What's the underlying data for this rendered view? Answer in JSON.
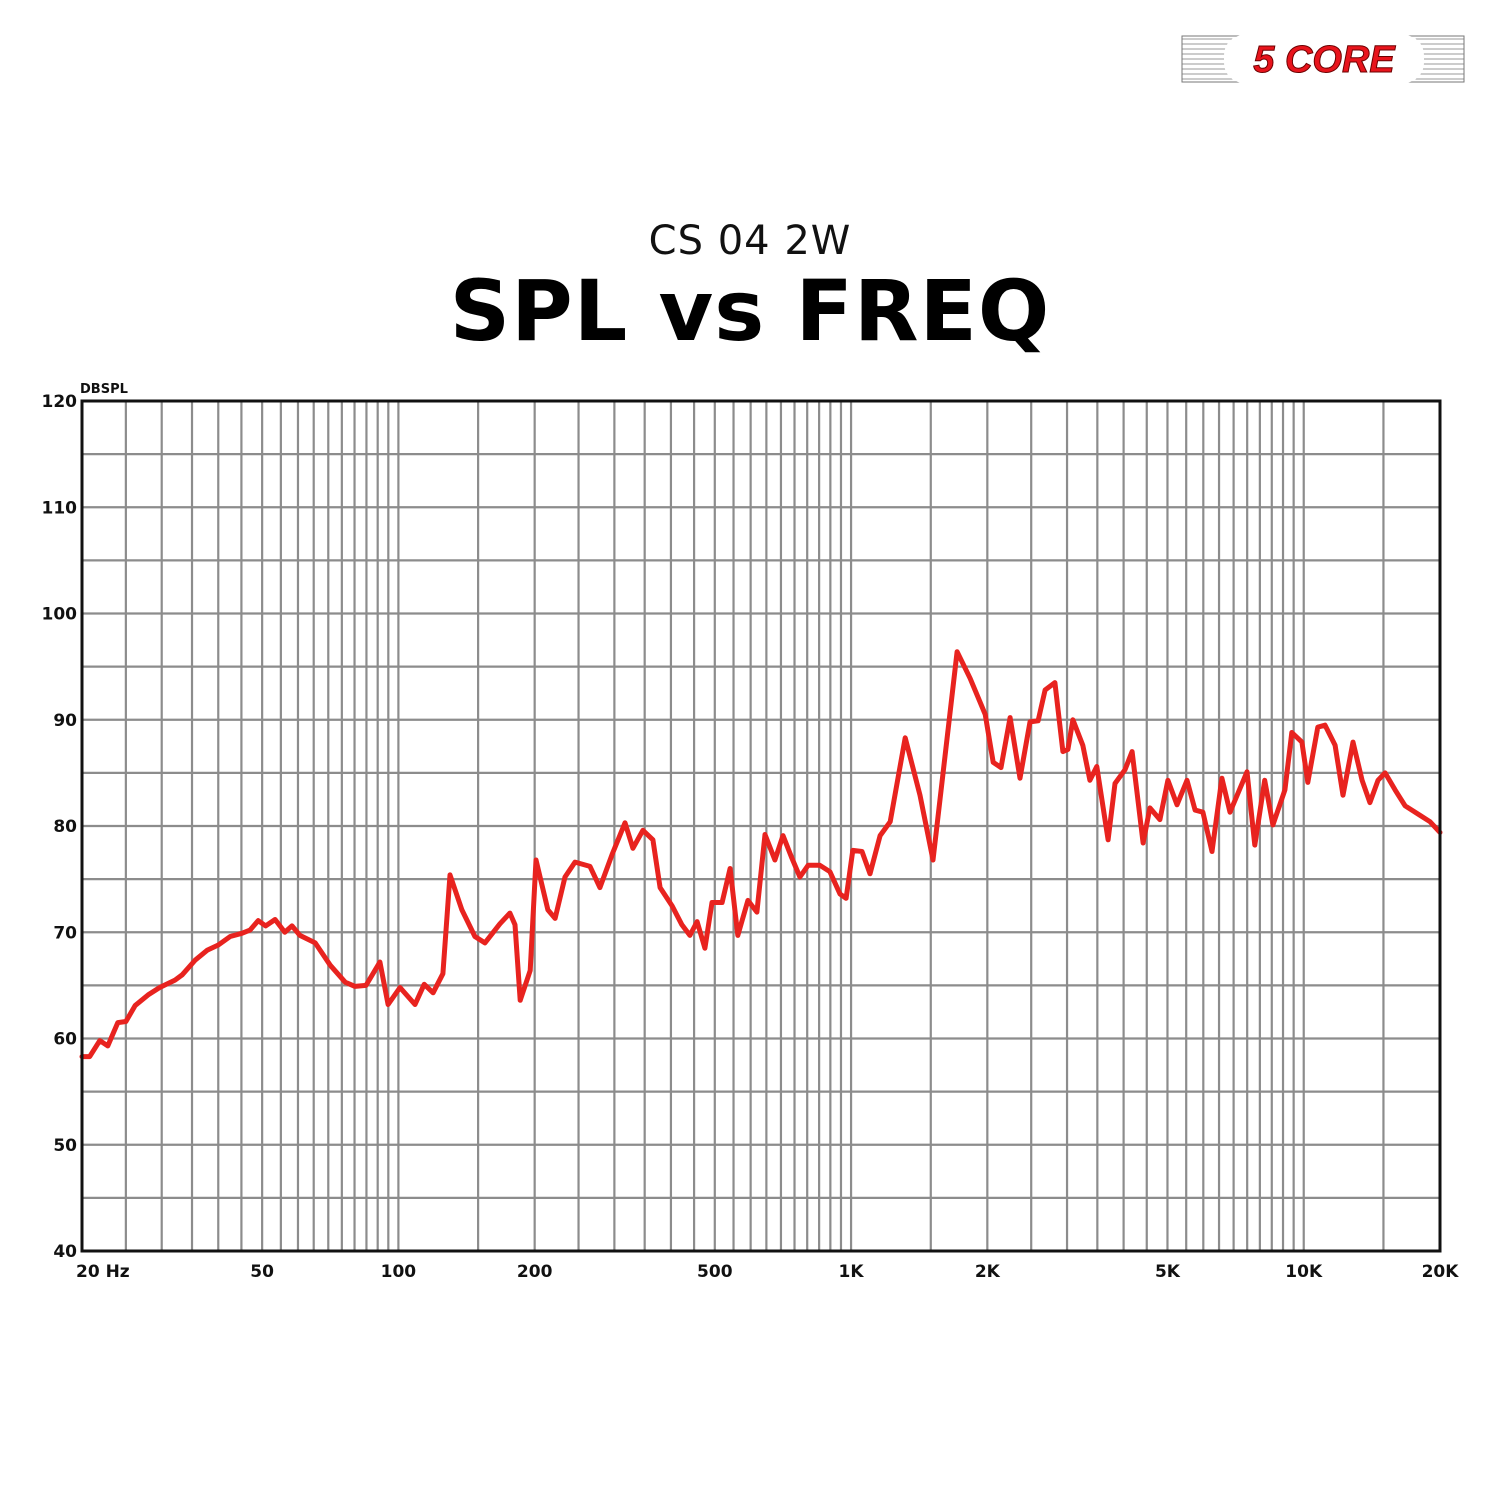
{
  "brand": {
    "logo_text": "5 CORE",
    "logo_color": "#E8141C"
  },
  "header": {
    "subtitle": "CS 04 2W",
    "title": "SPL vs FREQ"
  },
  "colors": {
    "curve": "#E8231F",
    "grid": "#8C8C8C",
    "frame": "#111111"
  },
  "chart_data": {
    "type": "line",
    "title": "SPL vs FREQ",
    "subtitle": "CS 04 2W",
    "xlabel": "Hz",
    "ylabel": "DBSPL",
    "xscale": "log",
    "xlim": [
      20,
      20000
    ],
    "ylim": [
      40,
      120
    ],
    "grid": true,
    "legend": null,
    "y_ticks": [
      40,
      50,
      60,
      70,
      80,
      90,
      100,
      110,
      120
    ],
    "y_minor_step": 5,
    "x_ticks": [
      {
        "value": 20,
        "label": "20 Hz"
      },
      {
        "value": 50,
        "label": "50"
      },
      {
        "value": 100,
        "label": "100"
      },
      {
        "value": 200,
        "label": "200"
      },
      {
        "value": 500,
        "label": "500"
      },
      {
        "value": 1000,
        "label": "1K"
      },
      {
        "value": 2000,
        "label": "2K"
      },
      {
        "value": 5000,
        "label": "5K"
      },
      {
        "value": 10000,
        "label": "10K"
      },
      {
        "value": 20000,
        "label": "20K"
      }
    ],
    "x_gridlines": [
      25,
      30,
      35,
      40,
      45,
      50,
      55,
      60,
      65,
      70,
      75,
      80,
      85,
      90,
      95,
      100,
      150,
      200,
      250,
      300,
      350,
      400,
      450,
      500,
      550,
      600,
      650,
      700,
      750,
      800,
      850,
      900,
      950,
      1000,
      1500,
      2000,
      2500,
      3000,
      3500,
      4000,
      4500,
      5000,
      5500,
      6000,
      6500,
      7000,
      7500,
      8000,
      8500,
      9000,
      9500,
      10000,
      15000
    ],
    "series": [
      {
        "name": "SPL",
        "x": [
          20,
          20.8,
          21.9,
          22.8,
          24.0,
          25.0,
          26.2,
          28.0,
          29.7,
          32.1,
          33.3,
          35.6,
          37.8,
          40.0,
          42.5,
          45.1,
          47.0,
          49.0,
          50.9,
          53.4,
          56.1,
          58.2,
          60.6,
          65.5,
          70.7,
          76.3,
          80.2,
          84.8,
          91.0,
          94.9,
          100.8,
          108.8,
          114.0,
          119.3,
          125.4,
          130.0,
          138.1,
          147.6,
          155.3,
          167.6,
          176.3,
          181.0,
          185.8,
          195.5,
          201.4,
          213.9,
          221.9,
          233.4,
          245.5,
          265.0,
          278.7,
          296.4,
          316.7,
          329.6,
          346.8,
          364.9,
          378.5,
          402.1,
          422.9,
          440.5,
          456.9,
          475.4,
          493.0,
          518.8,
          540.6,
          562.1,
          591.6,
          619.4,
          645.5,
          678.9,
          707.5,
          739.8,
          770.9,
          803.5,
          853.4,
          897.9,
          945.3,
          974.9,
          1009,
          1057,
          1101,
          1159,
          1220,
          1317,
          1420,
          1517,
          1715,
          1832,
          1978,
          2061,
          2144,
          2245,
          2362,
          2485,
          2589,
          2683,
          2820,
          2938,
          3013,
          3090,
          3251,
          3370,
          3491,
          3697,
          3829,
          4028,
          4177,
          4417,
          4573,
          4811,
          5012,
          5249,
          5522,
          5754,
          5986,
          6270,
          6594,
          6872,
          7495,
          7798,
          8200,
          8548,
          9087,
          9410,
          9905,
          10210,
          10740,
          11140,
          11730,
          12210,
          12850,
          13460,
          14000,
          14590,
          15130,
          15920,
          16750,
          18070,
          19010,
          20000
        ],
        "values": [
          58.3,
          58.3,
          59.8,
          59.3,
          61.5,
          61.6,
          63.1,
          64.1,
          64.8,
          65.5,
          66.0,
          67.4,
          68.3,
          68.8,
          69.6,
          69.9,
          70.2,
          71.1,
          70.6,
          71.2,
          70.0,
          70.6,
          69.7,
          69.0,
          66.9,
          65.3,
          64.9,
          65.0,
          67.2,
          63.2,
          64.8,
          63.2,
          65.1,
          64.3,
          66.1,
          75.4,
          72.1,
          69.6,
          69.0,
          70.8,
          71.8,
          70.7,
          63.6,
          66.4,
          76.8,
          72.1,
          71.3,
          75.2,
          76.6,
          76.2,
          74.2,
          77.3,
          80.3,
          77.9,
          79.6,
          78.7,
          74.2,
          72.5,
          70.7,
          69.7,
          71.0,
          68.5,
          72.8,
          72.8,
          76.0,
          69.7,
          73.0,
          71.9,
          79.2,
          76.8,
          79.1,
          77.0,
          75.2,
          76.3,
          76.3,
          75.7,
          73.6,
          73.2,
          77.7,
          77.6,
          75.5,
          79.1,
          80.4,
          88.3,
          82.9,
          76.8,
          96.4,
          93.9,
          90.5,
          86.0,
          85.5,
          90.2,
          84.5,
          89.8,
          89.9,
          92.8,
          93.5,
          87.0,
          87.2,
          90.0,
          87.6,
          84.3,
          85.6,
          78.7,
          84.0,
          85.3,
          87.0,
          78.4,
          81.7,
          80.6,
          84.3,
          82.0,
          84.3,
          81.5,
          81.3,
          77.6,
          84.5,
          81.3,
          85.1,
          78.2,
          84.3,
          80.1,
          83.4,
          88.8,
          87.9,
          84.1,
          89.3,
          89.5,
          87.6,
          82.9,
          87.9,
          84.3,
          82.2,
          84.3,
          85.0,
          83.4,
          81.9,
          81.0,
          80.4,
          79.4
        ]
      }
    ]
  }
}
